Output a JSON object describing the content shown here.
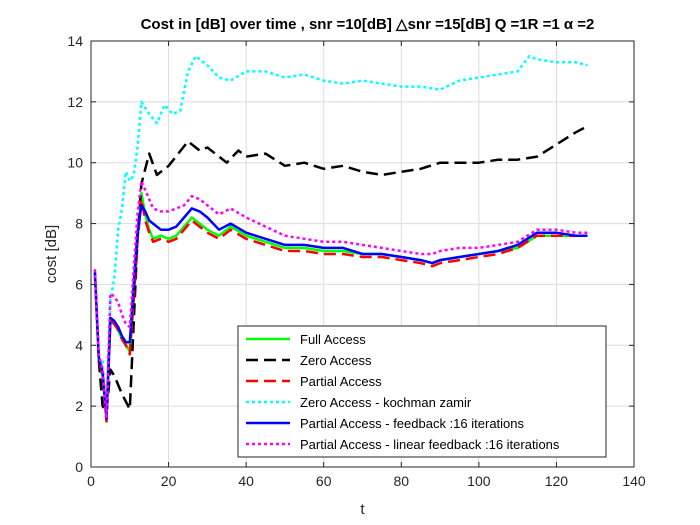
{
  "chart_data": {
    "type": "line",
    "title": "Cost in [dB] over time , snr =10[dB] △snr =15[dB] Q =1R =1 α =2",
    "xlabel": "t",
    "ylabel": "cost [dB]",
    "xlim": [
      0,
      140
    ],
    "ylim": [
      0,
      14
    ],
    "xticks": [
      "0",
      "20",
      "40",
      "60",
      "80",
      "100",
      "120",
      "140"
    ],
    "yticks": [
      "0",
      "2",
      "4",
      "6",
      "8",
      "10",
      "12",
      "14"
    ],
    "grid": true,
    "legend_position": "lower-right",
    "series": [
      {
        "name": "Full Access",
        "color": "#00ff00",
        "dash": "",
        "width": 2.5,
        "x": [
          1,
          2,
          3,
          4,
          5,
          6,
          7,
          8,
          9,
          10,
          11,
          12,
          13,
          14,
          15,
          16,
          18,
          20,
          22,
          24,
          26,
          28,
          30,
          33,
          36,
          40,
          45,
          50,
          55,
          60,
          65,
          70,
          75,
          80,
          85,
          88,
          90,
          95,
          100,
          105,
          110,
          115,
          120,
          125,
          128
        ],
        "y": [
          6.4,
          3.5,
          3.0,
          1.5,
          4.8,
          4.7,
          4.5,
          4.2,
          4.0,
          3.8,
          5.5,
          7.5,
          9.0,
          8.3,
          7.8,
          7.5,
          7.6,
          7.5,
          7.6,
          7.9,
          8.2,
          8.0,
          7.8,
          7.6,
          7.9,
          7.6,
          7.4,
          7.2,
          7.2,
          7.1,
          7.1,
          7.0,
          7.0,
          6.9,
          6.8,
          6.7,
          6.8,
          6.9,
          7.0,
          7.1,
          7.2,
          7.6,
          7.6,
          7.6,
          7.6
        ]
      },
      {
        "name": "Zero Access",
        "color": "#000000",
        "dash": "12,6",
        "width": 2.5,
        "x": [
          2,
          3,
          4,
          5,
          6,
          8,
          10,
          12,
          13,
          15,
          17,
          20,
          25,
          28,
          30,
          35,
          38,
          40,
          45,
          50,
          55,
          60,
          65,
          70,
          75,
          80,
          85,
          90,
          95,
          100,
          105,
          110,
          115,
          120,
          125,
          128
        ],
        "y": [
          3.5,
          2.0,
          1.8,
          3.2,
          3.0,
          2.4,
          1.9,
          7.5,
          9.3,
          10.3,
          9.6,
          9.9,
          10.7,
          10.4,
          10.5,
          10.0,
          10.4,
          10.2,
          10.3,
          9.9,
          10.0,
          9.8,
          9.9,
          9.7,
          9.6,
          9.7,
          9.8,
          10.0,
          10.0,
          10.0,
          10.1,
          10.1,
          10.2,
          10.6,
          11.0,
          11.2
        ]
      },
      {
        "name": "Partial Access",
        "color": "#ff0000",
        "dash": "12,6",
        "width": 2.5,
        "x": [
          1,
          2,
          3,
          4,
          5,
          6,
          7,
          8,
          9,
          10,
          11,
          12,
          13,
          14,
          15,
          16,
          18,
          20,
          22,
          24,
          26,
          28,
          30,
          33,
          36,
          40,
          45,
          50,
          55,
          60,
          65,
          70,
          75,
          80,
          85,
          88,
          90,
          95,
          100,
          105,
          110,
          115,
          120,
          125,
          128
        ],
        "y": [
          6.4,
          3.5,
          3.0,
          1.5,
          4.8,
          4.7,
          4.5,
          4.2,
          4.0,
          3.7,
          5.5,
          7.4,
          8.8,
          8.1,
          7.7,
          7.4,
          7.5,
          7.4,
          7.5,
          7.8,
          8.1,
          7.9,
          7.7,
          7.5,
          7.8,
          7.5,
          7.3,
          7.1,
          7.1,
          7.0,
          7.0,
          6.9,
          6.9,
          6.8,
          6.7,
          6.6,
          6.7,
          6.8,
          6.9,
          7.0,
          7.2,
          7.6,
          7.6,
          7.6,
          7.6
        ]
      },
      {
        "name": "Zero Access - kochman zamir",
        "color": "#00ffff",
        "dash": "3,3",
        "width": 2.5,
        "x": [
          3,
          4,
          5,
          6,
          7,
          8,
          9,
          10,
          11,
          12,
          13,
          15,
          17,
          19,
          21,
          23,
          25,
          27,
          30,
          33,
          36,
          40,
          45,
          50,
          55,
          60,
          65,
          70,
          75,
          80,
          85,
          90,
          95,
          100,
          105,
          110,
          113,
          115,
          120,
          125,
          128
        ],
        "y": [
          3.5,
          1.8,
          5.5,
          6.2,
          7.8,
          8.5,
          9.7,
          9.4,
          9.6,
          10.5,
          12.0,
          11.6,
          11.3,
          11.9,
          11.6,
          11.7,
          13.0,
          13.5,
          13.2,
          12.8,
          12.7,
          13.0,
          13.0,
          12.8,
          12.9,
          12.7,
          12.6,
          12.7,
          12.6,
          12.5,
          12.5,
          12.4,
          12.7,
          12.8,
          12.9,
          13.0,
          13.5,
          13.4,
          13.3,
          13.3,
          13.2
        ]
      },
      {
        "name": "Partial Access - feedback :16 iterations",
        "color": "#0000ff",
        "dash": "",
        "width": 2.5,
        "x": [
          1,
          2,
          3,
          4,
          5,
          6,
          7,
          8,
          9,
          10,
          11,
          12,
          13,
          14,
          15,
          16,
          18,
          20,
          22,
          24,
          26,
          28,
          30,
          33,
          36,
          40,
          45,
          50,
          55,
          60,
          65,
          70,
          75,
          80,
          85,
          88,
          90,
          95,
          100,
          105,
          110,
          115,
          120,
          125,
          128
        ],
        "y": [
          6.4,
          3.6,
          3.1,
          1.6,
          4.9,
          4.8,
          4.6,
          4.3,
          4.1,
          4.1,
          6.0,
          7.7,
          8.6,
          8.4,
          8.1,
          8.0,
          7.8,
          7.8,
          7.9,
          8.2,
          8.5,
          8.4,
          8.2,
          7.8,
          8.0,
          7.7,
          7.5,
          7.3,
          7.3,
          7.2,
          7.2,
          7.0,
          7.0,
          6.9,
          6.8,
          6.7,
          6.8,
          6.9,
          7.0,
          7.1,
          7.3,
          7.7,
          7.7,
          7.6,
          7.6
        ]
      },
      {
        "name": "Partial Access - linear feedback :16 iterations",
        "color": "#ff00ff",
        "dash": "3,3",
        "width": 2.5,
        "x": [
          1,
          2,
          3,
          4,
          5,
          6,
          7,
          8,
          9,
          10,
          11,
          12,
          13,
          14,
          15,
          16,
          18,
          20,
          22,
          24,
          26,
          28,
          30,
          33,
          36,
          40,
          45,
          50,
          55,
          60,
          65,
          70,
          75,
          80,
          85,
          88,
          90,
          95,
          100,
          105,
          110,
          115,
          120,
          125,
          128
        ],
        "y": [
          6.5,
          3.7,
          3.2,
          1.6,
          5.7,
          5.6,
          5.4,
          5.0,
          4.7,
          4.6,
          6.5,
          8.3,
          9.4,
          9.1,
          8.8,
          8.5,
          8.4,
          8.4,
          8.5,
          8.6,
          8.9,
          8.8,
          8.6,
          8.3,
          8.5,
          8.2,
          7.9,
          7.6,
          7.5,
          7.4,
          7.4,
          7.3,
          7.2,
          7.1,
          7.0,
          7.0,
          7.1,
          7.2,
          7.2,
          7.3,
          7.4,
          7.8,
          7.8,
          7.7,
          7.7
        ]
      }
    ]
  }
}
